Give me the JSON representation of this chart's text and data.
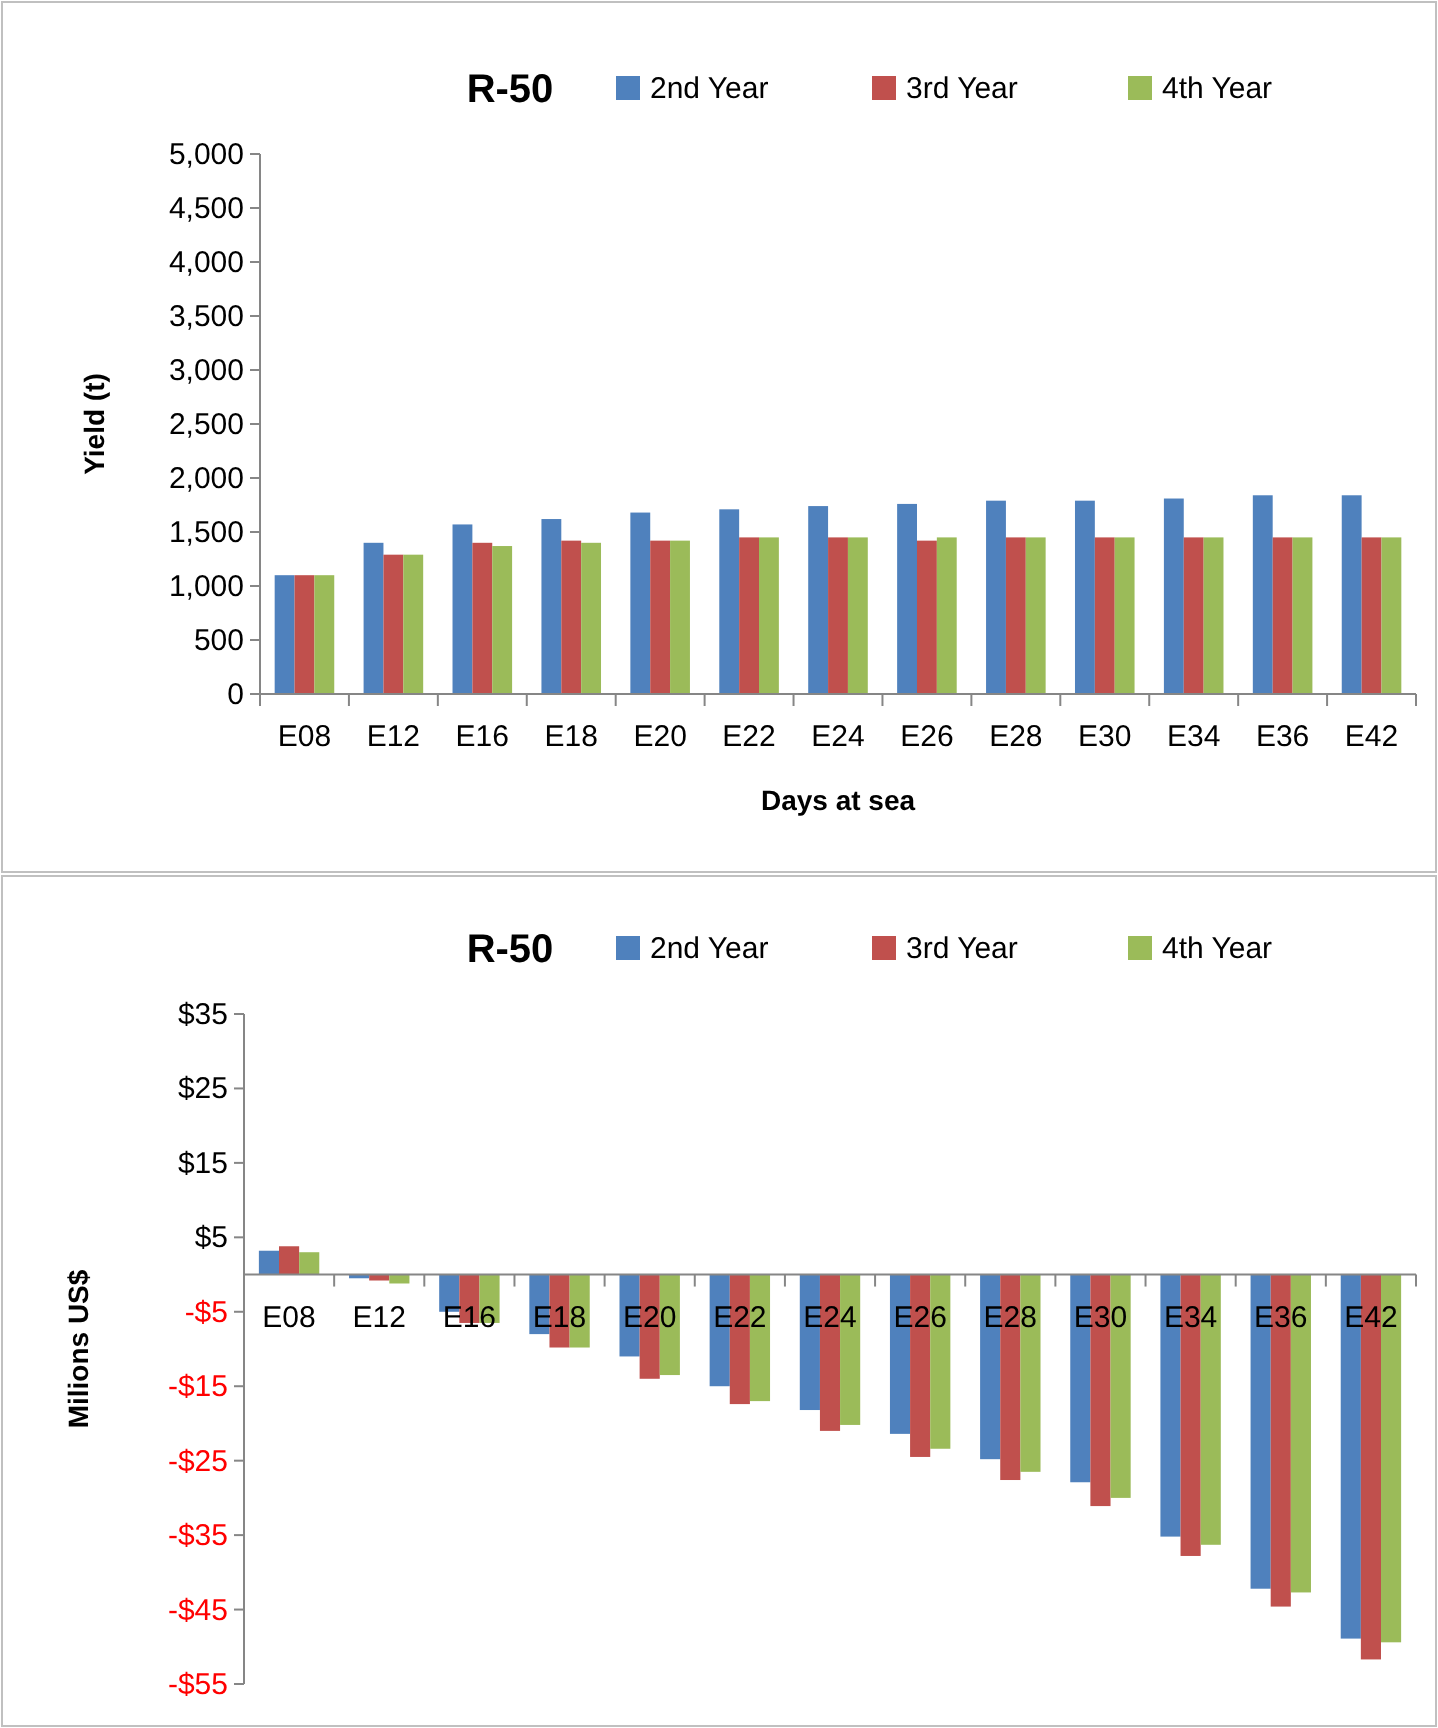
{
  "chart_data": [
    {
      "type": "bar",
      "title": "R-50",
      "xlabel": "Days at sea",
      "ylabel": "Yield (t)",
      "legend": "top",
      "categories": [
        "E08",
        "E12",
        "E16",
        "E18",
        "E20",
        "E22",
        "E24",
        "E26",
        "E28",
        "E30",
        "E34",
        "E36",
        "E42"
      ],
      "series": [
        {
          "name": "2nd Year",
          "color": "#4f81bd",
          "values": [
            1100,
            1400,
            1570,
            1620,
            1680,
            1710,
            1740,
            1760,
            1790,
            1790,
            1810,
            1840,
            1840
          ]
        },
        {
          "name": "3rd Year",
          "color": "#c0504d",
          "values": [
            1100,
            1290,
            1400,
            1420,
            1420,
            1450,
            1450,
            1420,
            1450,
            1450,
            1450,
            1450,
            1450
          ]
        },
        {
          "name": "4th Year",
          "color": "#9bbb59",
          "values": [
            1100,
            1290,
            1370,
            1400,
            1420,
            1450,
            1450,
            1450,
            1450,
            1450,
            1450,
            1450,
            1450
          ]
        }
      ],
      "ylim": [
        0,
        5000
      ],
      "yticks": [
        {
          "value": 0,
          "label": "0"
        },
        {
          "value": 500,
          "label": "500"
        },
        {
          "value": 1000,
          "label": "1,000"
        },
        {
          "value": 1500,
          "label": "1,500"
        },
        {
          "value": 2000,
          "label": "2,000"
        },
        {
          "value": 2500,
          "label": "2,500"
        },
        {
          "value": 3000,
          "label": "3,000"
        },
        {
          "value": 3500,
          "label": "3,500"
        },
        {
          "value": 4000,
          "label": "4,000"
        },
        {
          "value": 4500,
          "label": "4,500"
        },
        {
          "value": 5000,
          "label": "5,000"
        }
      ],
      "grid": false
    },
    {
      "type": "bar",
      "title": "R-50",
      "ylabel": "Milions US$",
      "legend": "top",
      "categories": [
        "E08",
        "E12",
        "E16",
        "E18",
        "E20",
        "E22",
        "E24",
        "E26",
        "E28",
        "E30",
        "E34",
        "E36",
        "E42"
      ],
      "series": [
        {
          "name": "2nd Year",
          "color": "#4f81bd",
          "values": [
            3.2,
            -0.5,
            -5,
            -8,
            -11,
            -15,
            -18.2,
            -21.4,
            -24.8,
            -27.9,
            -35.2,
            -42.2,
            -48.9
          ]
        },
        {
          "name": "3rd Year",
          "color": "#c0504d",
          "values": [
            3.8,
            -0.8,
            -6.5,
            -9.8,
            -14,
            -17.4,
            -21,
            -24.5,
            -27.6,
            -31.1,
            -37.8,
            -44.6,
            -51.7
          ]
        },
        {
          "name": "4th Year",
          "color": "#9bbb59",
          "values": [
            3,
            -1.2,
            -6.5,
            -9.8,
            -13.5,
            -17,
            -20.2,
            -23.4,
            -26.5,
            -30,
            -36.3,
            -42.7,
            -49.4
          ]
        }
      ],
      "ylim": [
        -55,
        35
      ],
      "yticks": [
        {
          "value": 35,
          "label": "$35"
        },
        {
          "value": 25,
          "label": "$25"
        },
        {
          "value": 15,
          "label": "$15"
        },
        {
          "value": 5,
          "label": "$5"
        },
        {
          "value": -5,
          "label": "-$5"
        },
        {
          "value": -15,
          "label": "-$15"
        },
        {
          "value": -25,
          "label": "-$25"
        },
        {
          "value": -35,
          "label": "-$35"
        },
        {
          "value": -45,
          "label": "-$45"
        },
        {
          "value": -55,
          "label": "-$55"
        }
      ],
      "grid": false
    }
  ]
}
